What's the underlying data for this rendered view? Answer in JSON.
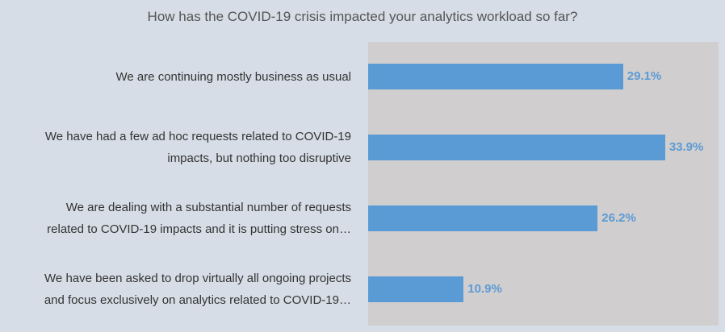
{
  "chart_data": {
    "type": "bar",
    "orientation": "horizontal",
    "title": "How has the COVID-19 crisis impacted your analytics workload so far?",
    "categories": [
      [
        "We are continuing mostly business as usual"
      ],
      [
        "We have had a few ad hoc requests related to COVID-19",
        "impacts, but nothing too disruptive"
      ],
      [
        "We are dealing with a substantial number of requests",
        "related to COVID-19 impacts and it is putting stress on…"
      ],
      [
        "We have been asked to drop virtually all ongoing projects",
        "and focus exclusively on analytics related to COVID-19…"
      ]
    ],
    "values": [
      29.1,
      33.9,
      26.2,
      10.9
    ],
    "value_labels": [
      "29.1%",
      "33.9%",
      "26.2%",
      "10.9%"
    ],
    "unit": "%",
    "xlim": [
      0,
      40
    ],
    "xlabel": "",
    "ylabel": "",
    "grid": false,
    "colors": {
      "bar": "#5b9bd5",
      "label": "#5b9bd5",
      "plot_bg": "#d0cece",
      "background": "#d6dde6"
    }
  }
}
